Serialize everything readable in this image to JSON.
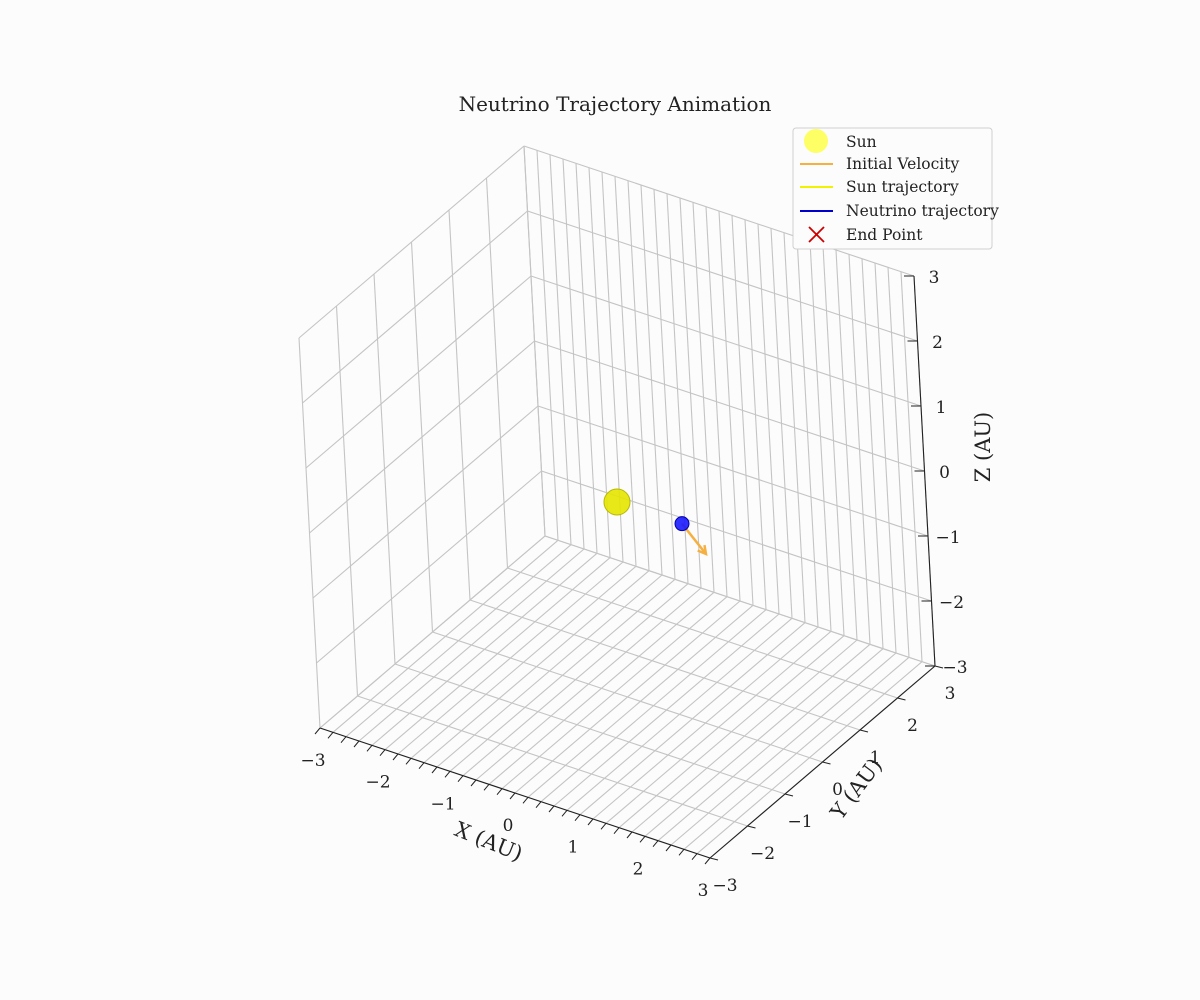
{
  "chart_data": {
    "type": "scatter",
    "title": "Neutrino Trajectory Animation",
    "xlabel": "X (AU)",
    "ylabel": "Y (AU)",
    "zlabel": "Z (AU)",
    "xlim": [
      -3,
      3
    ],
    "ylim": [
      -3,
      3
    ],
    "zlim": [
      -3,
      3
    ],
    "ticks": {
      "x": [
        "−3",
        "−2",
        "−1",
        "0",
        "1",
        "2",
        "3"
      ],
      "y": [
        "−3",
        "−2",
        "−1",
        "0",
        "1",
        "2",
        "3"
      ],
      "z": [
        "−3",
        "−2",
        "−1",
        "0",
        "1",
        "2",
        "3"
      ]
    },
    "grid": true,
    "legend_position": "top-right",
    "legend": [
      {
        "label": "Sun",
        "marker": "circle",
        "color": "#ffff33"
      },
      {
        "label": "Initial Velocity",
        "marker": "line",
        "color": "#f5b041"
      },
      {
        "label": "Sun trajectory",
        "marker": "line",
        "color": "#ffff00"
      },
      {
        "label": "Neutrino trajectory",
        "marker": "line",
        "color": "#0000cc"
      },
      {
        "label": "End Point",
        "marker": "x",
        "color": "#cc0000"
      }
    ],
    "points": {
      "sun": {
        "x": 0,
        "y": 0,
        "z": 0,
        "color": "#e6e600"
      },
      "neutrino": {
        "x": 1,
        "y": 0,
        "z": 0,
        "color": "#1a1aff"
      }
    },
    "initial_velocity": {
      "from": [
        1,
        0,
        0
      ],
      "to": [
        1.35,
        0,
        -0.35
      ],
      "color": "#f5b041"
    }
  }
}
